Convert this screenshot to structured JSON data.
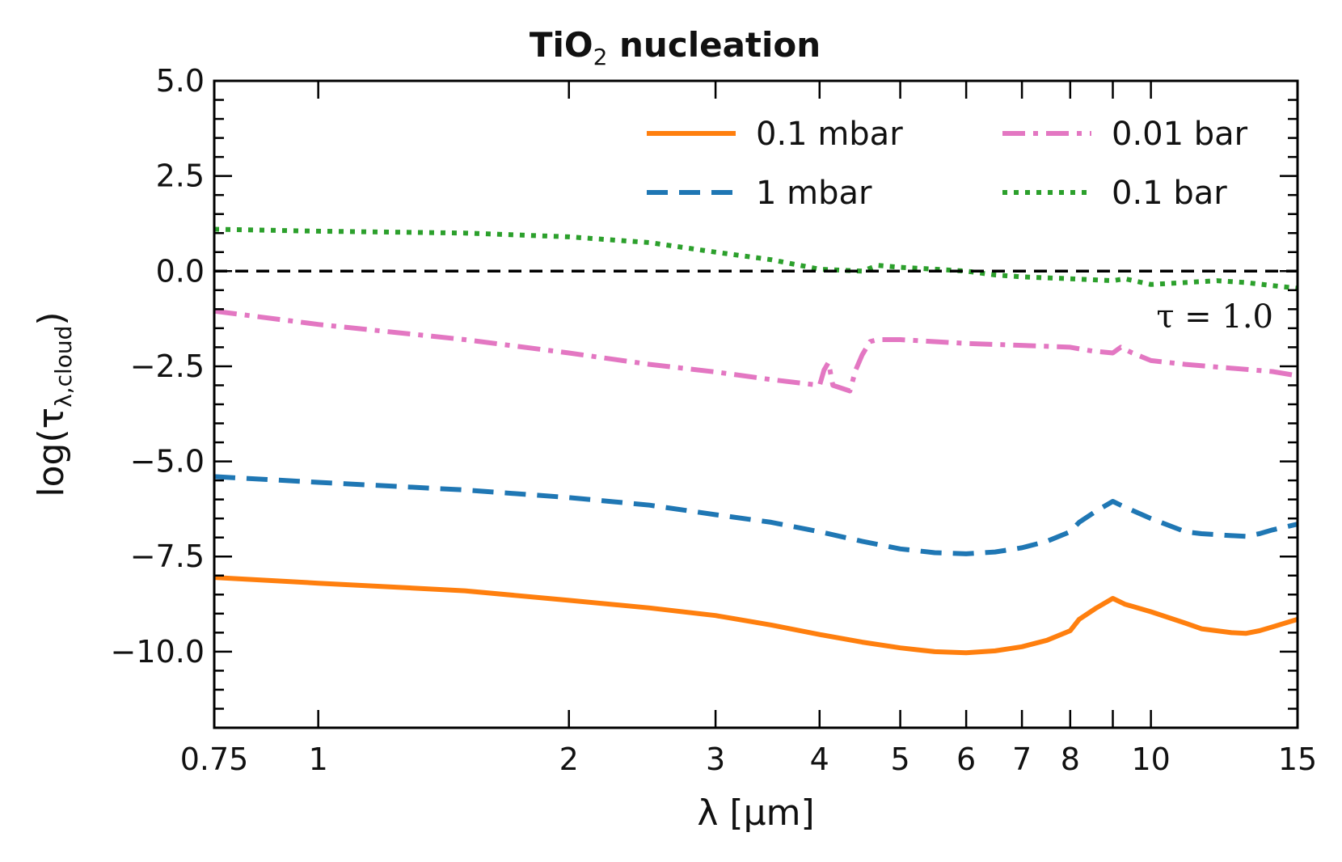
{
  "chart_data": {
    "type": "line",
    "title": {
      "main": "TiO",
      "sub": "2",
      "rest": " nucleation"
    },
    "xlabel": "λ [μm]",
    "ylabel": {
      "base": "log(τ",
      "sub": "λ,cloud",
      "close": ")"
    },
    "x_scale": "log",
    "xlim": [
      0.75,
      15
    ],
    "ylim": [
      -12,
      5
    ],
    "x_ticks": [
      {
        "value": 0.75,
        "label": "0.75"
      },
      {
        "value": 1,
        "label": "1"
      },
      {
        "value": 2,
        "label": "2"
      },
      {
        "value": 3,
        "label": "3"
      },
      {
        "value": 4,
        "label": "4"
      },
      {
        "value": 5,
        "label": "5"
      },
      {
        "value": 6,
        "label": "6"
      },
      {
        "value": 7,
        "label": "7"
      },
      {
        "value": 8,
        "label": "8"
      },
      {
        "value": 10,
        "label": "10"
      },
      {
        "value": 15,
        "label": "15"
      }
    ],
    "x_minor_ticks": [
      9
    ],
    "y_ticks": [
      {
        "value": 5,
        "label": "5.0"
      },
      {
        "value": 2.5,
        "label": "2.5"
      },
      {
        "value": 0,
        "label": "0.0"
      },
      {
        "value": -2.5,
        "label": "−2.5"
      },
      {
        "value": -5,
        "label": "−5.0"
      },
      {
        "value": -7.5,
        "label": "−7.5"
      },
      {
        "value": -10,
        "label": "−10.0"
      }
    ],
    "y_minor_step": 0.5,
    "grid": false,
    "legend_position": "top-right",
    "reference_line": {
      "y": 0,
      "label": "τ = 1.0",
      "color": "#000000"
    },
    "series": [
      {
        "name": "0.1 mbar",
        "color": "#ff7f0e",
        "style": "solid",
        "points": [
          [
            0.75,
            -8.05
          ],
          [
            1.0,
            -8.2
          ],
          [
            1.5,
            -8.4
          ],
          [
            2.0,
            -8.65
          ],
          [
            2.5,
            -8.85
          ],
          [
            3.0,
            -9.05
          ],
          [
            3.5,
            -9.3
          ],
          [
            4.0,
            -9.55
          ],
          [
            4.5,
            -9.75
          ],
          [
            5.0,
            -9.9
          ],
          [
            5.5,
            -10.0
          ],
          [
            6.0,
            -10.03
          ],
          [
            6.5,
            -9.98
          ],
          [
            7.0,
            -9.87
          ],
          [
            7.5,
            -9.7
          ],
          [
            8.0,
            -9.45
          ],
          [
            8.2,
            -9.15
          ],
          [
            8.6,
            -8.85
          ],
          [
            9.0,
            -8.6
          ],
          [
            9.3,
            -8.75
          ],
          [
            10.0,
            -8.95
          ],
          [
            11.0,
            -9.25
          ],
          [
            11.5,
            -9.4
          ],
          [
            12.5,
            -9.5
          ],
          [
            13.0,
            -9.52
          ],
          [
            13.5,
            -9.45
          ],
          [
            14.0,
            -9.35
          ],
          [
            15.0,
            -9.15
          ]
        ]
      },
      {
        "name": "1 mbar",
        "color": "#1f77b4",
        "style": "dashed",
        "points": [
          [
            0.75,
            -5.4
          ],
          [
            1.0,
            -5.55
          ],
          [
            1.5,
            -5.75
          ],
          [
            2.0,
            -5.95
          ],
          [
            2.5,
            -6.15
          ],
          [
            3.0,
            -6.4
          ],
          [
            3.5,
            -6.6
          ],
          [
            4.0,
            -6.85
          ],
          [
            4.5,
            -7.1
          ],
          [
            5.0,
            -7.3
          ],
          [
            5.5,
            -7.4
          ],
          [
            6.0,
            -7.43
          ],
          [
            6.5,
            -7.38
          ],
          [
            7.0,
            -7.27
          ],
          [
            7.5,
            -7.1
          ],
          [
            8.0,
            -6.85
          ],
          [
            8.2,
            -6.6
          ],
          [
            8.6,
            -6.3
          ],
          [
            9.0,
            -6.05
          ],
          [
            9.3,
            -6.2
          ],
          [
            10.0,
            -6.5
          ],
          [
            11.0,
            -6.85
          ],
          [
            11.5,
            -6.9
          ],
          [
            12.5,
            -6.95
          ],
          [
            13.0,
            -6.97
          ],
          [
            13.5,
            -6.9
          ],
          [
            14.0,
            -6.8
          ],
          [
            15.0,
            -6.65
          ]
        ]
      },
      {
        "name": "0.01 bar",
        "color": "#e377c2",
        "style": "dashdot",
        "points": [
          [
            0.75,
            -1.05
          ],
          [
            1.0,
            -1.4
          ],
          [
            1.5,
            -1.8
          ],
          [
            2.0,
            -2.15
          ],
          [
            2.5,
            -2.45
          ],
          [
            3.0,
            -2.65
          ],
          [
            3.5,
            -2.85
          ],
          [
            4.0,
            -3.0
          ],
          [
            4.05,
            -2.6
          ],
          [
            4.1,
            -2.4
          ],
          [
            4.15,
            -3.0
          ],
          [
            4.35,
            -3.15
          ],
          [
            4.42,
            -2.6
          ],
          [
            4.5,
            -2.2
          ],
          [
            4.6,
            -1.85
          ],
          [
            4.7,
            -1.8
          ],
          [
            5.0,
            -1.8
          ],
          [
            6.0,
            -1.9
          ],
          [
            7.0,
            -1.95
          ],
          [
            8.0,
            -2.0
          ],
          [
            8.5,
            -2.1
          ],
          [
            9.0,
            -2.15
          ],
          [
            9.2,
            -2.0
          ],
          [
            9.5,
            -2.15
          ],
          [
            10.0,
            -2.35
          ],
          [
            11.0,
            -2.45
          ],
          [
            12.0,
            -2.52
          ],
          [
            13.0,
            -2.58
          ],
          [
            14.0,
            -2.64
          ],
          [
            15.0,
            -2.75
          ]
        ]
      },
      {
        "name": "0.1 bar",
        "color": "#2ca02c",
        "style": "dotted",
        "points": [
          [
            0.75,
            1.1
          ],
          [
            1.0,
            1.05
          ],
          [
            1.5,
            1.0
          ],
          [
            2.0,
            0.9
          ],
          [
            2.5,
            0.75
          ],
          [
            3.0,
            0.5
          ],
          [
            3.5,
            0.3
          ],
          [
            4.0,
            0.05
          ],
          [
            4.5,
            0.0
          ],
          [
            4.7,
            0.15
          ],
          [
            5.0,
            0.1
          ],
          [
            5.5,
            0.05
          ],
          [
            6.0,
            0.0
          ],
          [
            6.5,
            -0.1
          ],
          [
            7.0,
            -0.15
          ],
          [
            8.0,
            -0.2
          ],
          [
            9.0,
            -0.25
          ],
          [
            9.3,
            -0.2
          ],
          [
            10.0,
            -0.35
          ],
          [
            11.0,
            -0.3
          ],
          [
            12.0,
            -0.25
          ],
          [
            13.0,
            -0.3
          ],
          [
            14.0,
            -0.38
          ],
          [
            15.0,
            -0.45
          ]
        ]
      }
    ]
  }
}
